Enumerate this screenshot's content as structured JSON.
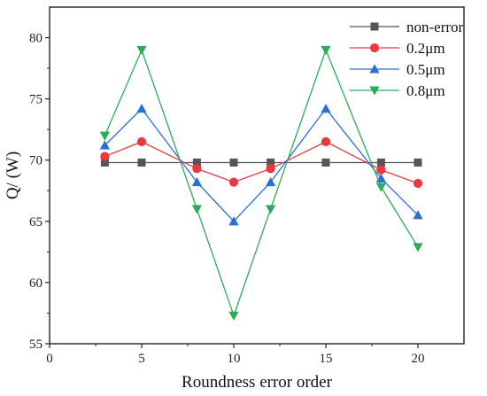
{
  "chart_data": {
    "type": "line",
    "xlabel": "Roundness error order",
    "ylabel": "Q/ (W)",
    "xlim": [
      0,
      22.5
    ],
    "ylim": [
      55,
      82.5
    ],
    "xticks": [
      0,
      5,
      10,
      15,
      20
    ],
    "yticks": [
      55,
      60,
      65,
      70,
      75,
      80
    ],
    "x": [
      3,
      5,
      8,
      10,
      12,
      15,
      18,
      20
    ],
    "grid": false,
    "legend_position": "top-right",
    "series": [
      {
        "name": "non-error",
        "marker": "square",
        "color": "#555555",
        "values": [
          69.8,
          69.8,
          69.8,
          69.8,
          69.8,
          69.8,
          69.8,
          69.8
        ]
      },
      {
        "name": "0.2μm",
        "marker": "circle",
        "color": "#e8393f",
        "values": [
          70.3,
          71.5,
          69.3,
          68.2,
          69.3,
          71.5,
          69.2,
          68.1
        ]
      },
      {
        "name": "0.5μm",
        "marker": "triangle-up",
        "color": "#2a6fd6",
        "values": [
          71.2,
          74.2,
          68.2,
          65.0,
          68.2,
          74.2,
          68.5,
          65.5
        ]
      },
      {
        "name": "0.8μm",
        "marker": "triangle-down",
        "color": "#2eaa5a",
        "values": [
          72.0,
          79.0,
          66.0,
          57.3,
          66.0,
          79.0,
          67.8,
          62.9
        ]
      }
    ]
  }
}
